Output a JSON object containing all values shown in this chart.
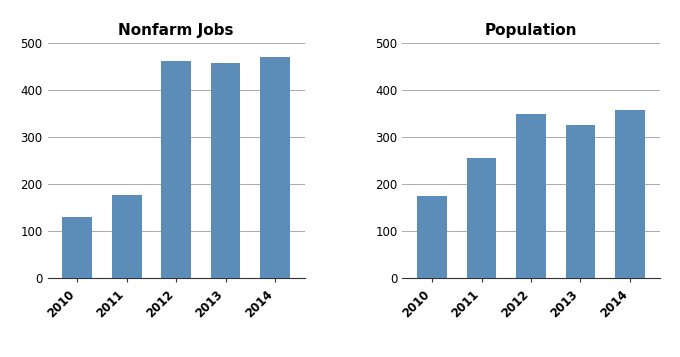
{
  "nonfarm_years": [
    "2010",
    "2011",
    "2012",
    "2013",
    "2014"
  ],
  "nonfarm_values": [
    130,
    178,
    462,
    458,
    470
  ],
  "population_years": [
    "2010",
    "2011",
    "2012",
    "2013",
    "2014"
  ],
  "population_values": [
    175,
    255,
    350,
    326,
    358
  ],
  "bar_color": "#5b8db8",
  "nonfarm_title": "Nonfarm Jobs",
  "population_title": "Population",
  "ylim": [
    0,
    500
  ],
  "yticks": [
    0,
    100,
    200,
    300,
    400,
    500
  ],
  "title_fontsize": 11,
  "tick_fontsize": 8.5,
  "background_color": "#ffffff",
  "grid_color": "#aaaaaa",
  "bar_width": 0.6
}
